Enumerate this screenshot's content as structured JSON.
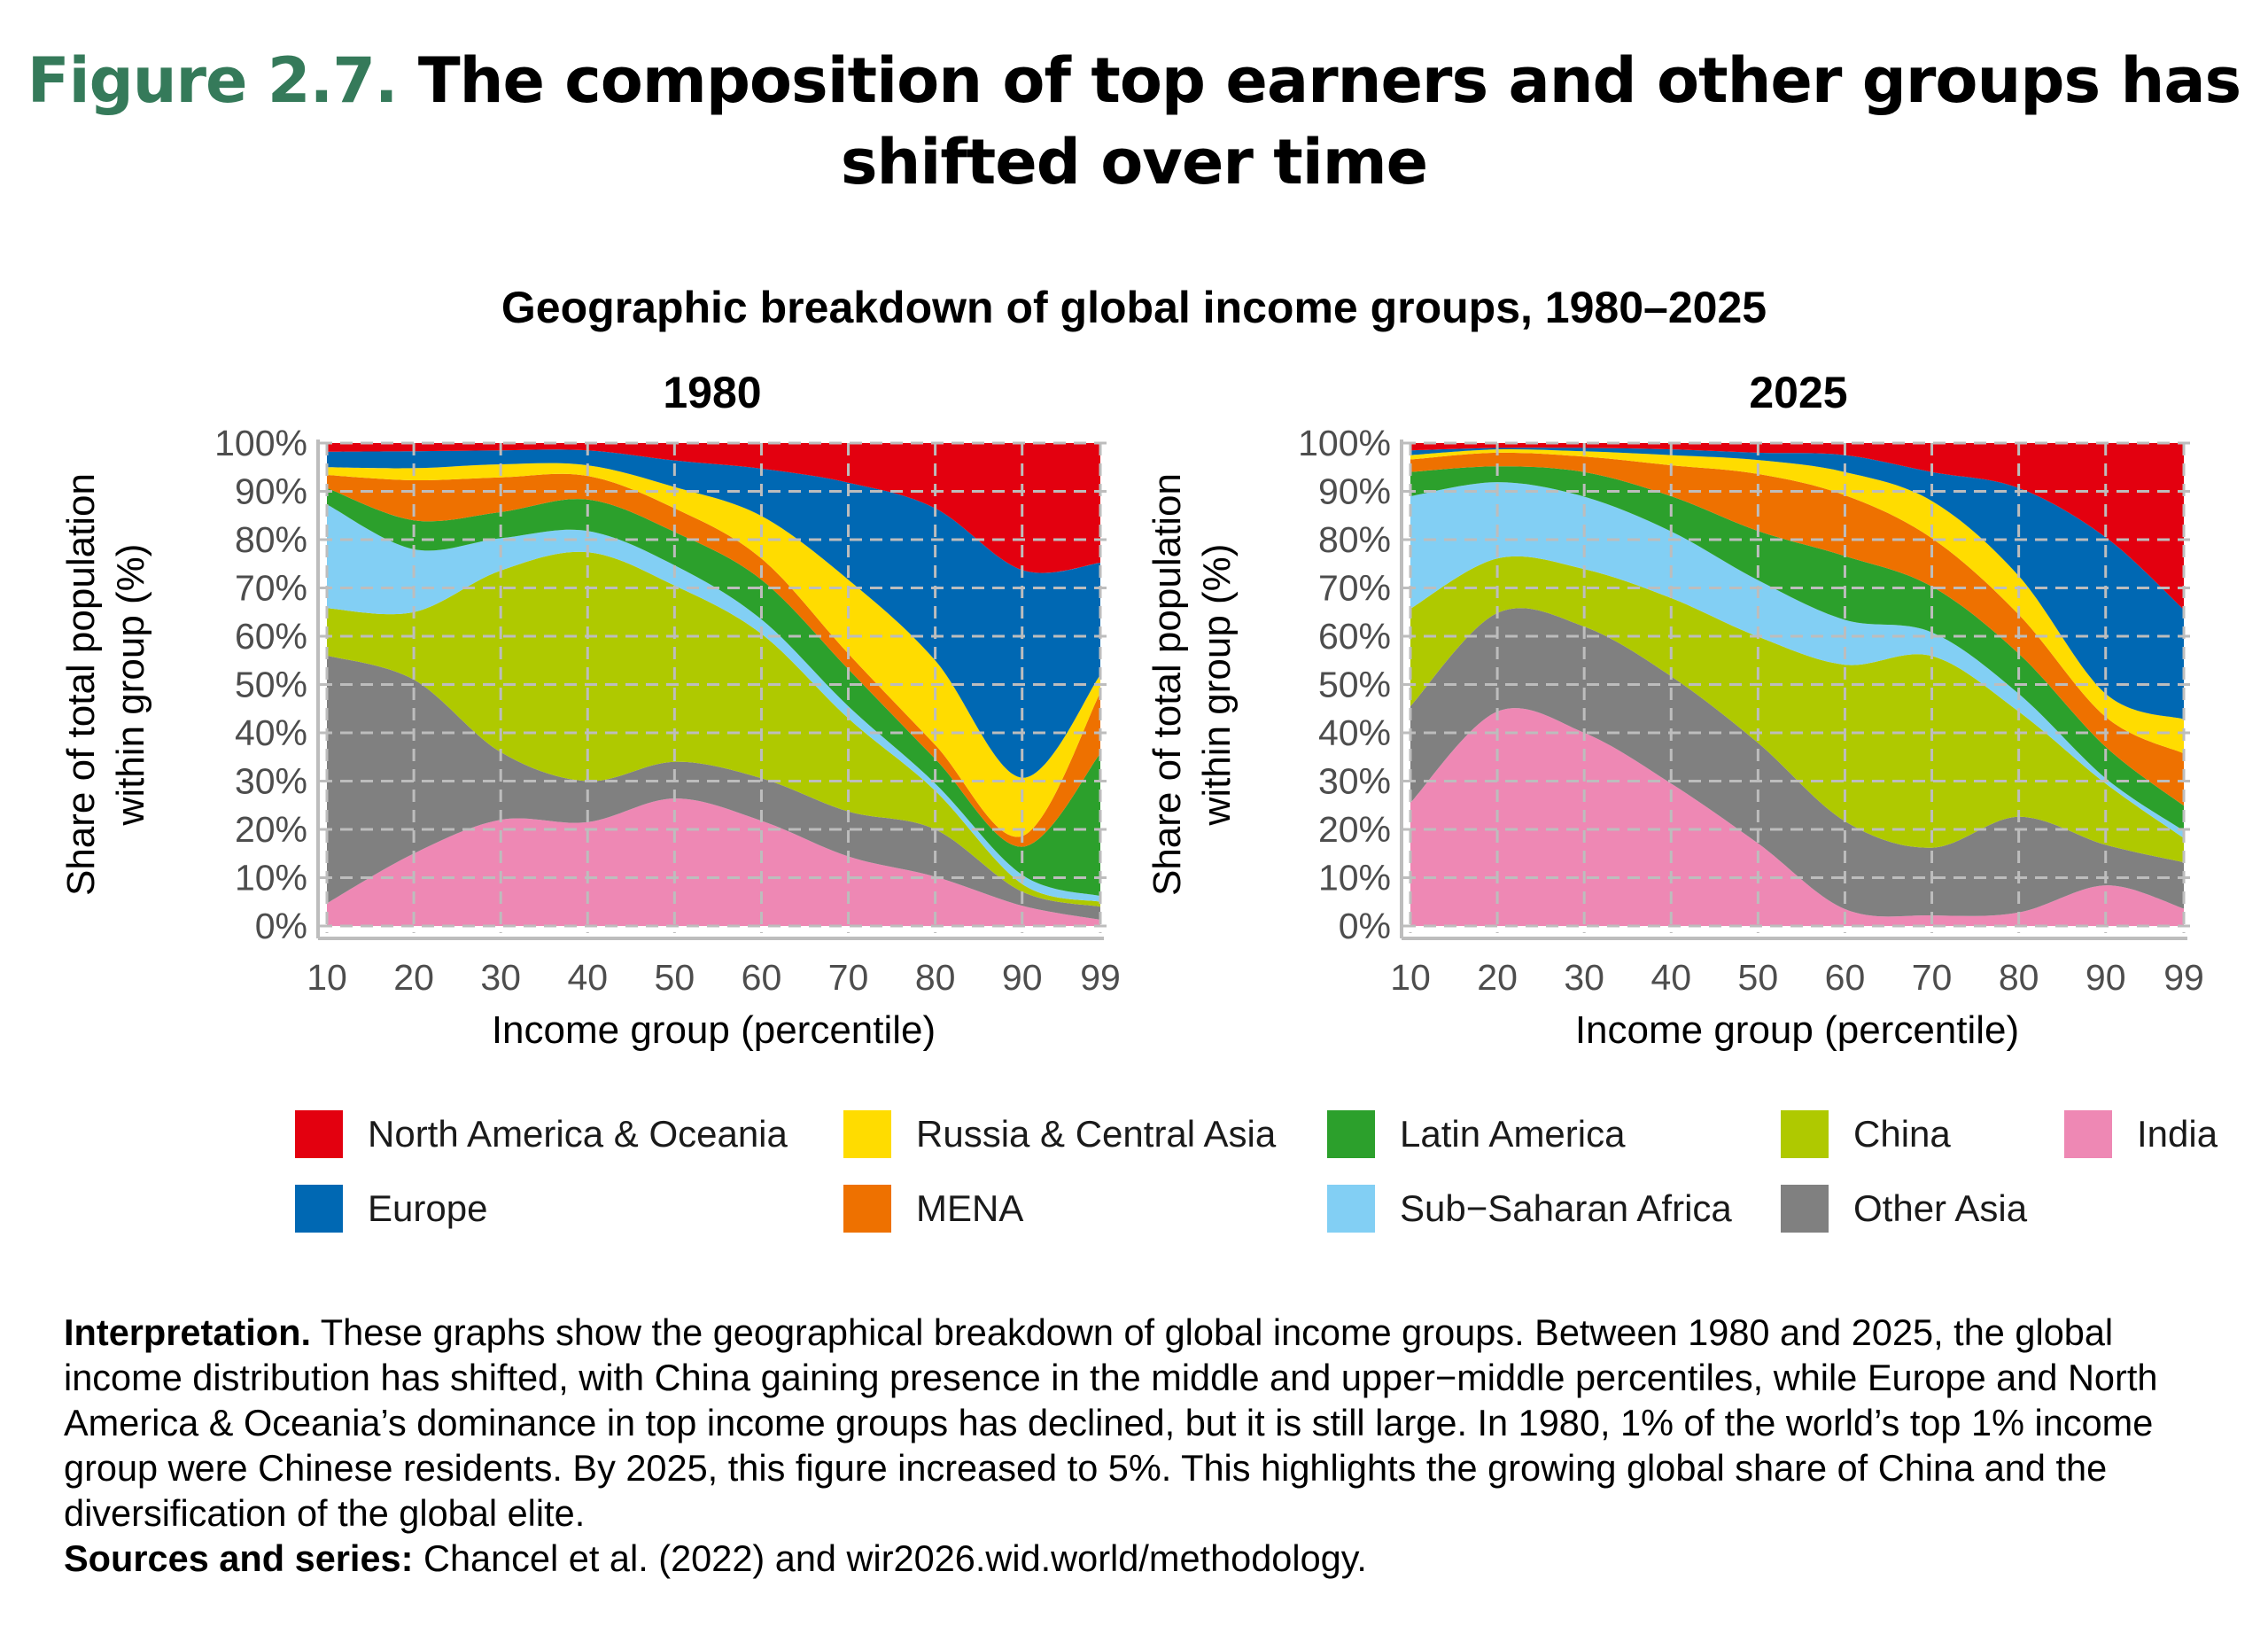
{
  "header": {
    "figure_label": "Figure 2.7.",
    "title": "The composition of top earners and other groups has shifted over time",
    "subtitle": "Geographic breakdown of global income groups, 1980–2025"
  },
  "colors": {
    "figure_label": "#357a5a",
    "North America & Oceania": "#e3000f",
    "Europe": "#0068b3",
    "Russia & Central Asia": "#ffdc00",
    "MENA": "#ee7100",
    "Latin America": "#2ca02c",
    "Sub−Saharan Africa": "#82cff4",
    "China": "#afc900",
    "Other Asia": "#808080",
    "India": "#ee88b4"
  },
  "legend": [
    {
      "label": "North America & Oceania",
      "color": "#e3000f"
    },
    {
      "label": "Russia & Central Asia",
      "color": "#ffdc00"
    },
    {
      "label": "Latin America",
      "color": "#2ca02c"
    },
    {
      "label": "China",
      "color": "#afc900"
    },
    {
      "label": "India",
      "color": "#ee88b4"
    },
    {
      "label": "Europe",
      "color": "#0068b3"
    },
    {
      "label": "MENA",
      "color": "#ee7100"
    },
    {
      "label": "Sub−Saharan Africa",
      "color": "#82cff4"
    },
    {
      "label": "Other Asia",
      "color": "#808080"
    }
  ],
  "chart_data": [
    {
      "type": "area",
      "stacked": true,
      "title": "1980",
      "xlabel": "Income group (percentile)",
      "ylabel": "Share of total population within group (%)",
      "ylabel_lines": [
        "Share of total population",
        "within group (%)"
      ],
      "ylim": [
        0,
        100
      ],
      "grid": true,
      "x": [
        10,
        20,
        30,
        40,
        50,
        60,
        70,
        80,
        90,
        99
      ],
      "x_tick_labels": [
        "10",
        "20",
        "30",
        "40",
        "50",
        "60",
        "70",
        "80",
        "90",
        "99"
      ],
      "y_tick_labels": [
        "0%",
        "10%",
        "20%",
        "30%",
        "40%",
        "50%",
        "60%",
        "70%",
        "80%",
        "90%",
        "100%"
      ],
      "series": [
        {
          "name": "India",
          "values": [
            4.7,
            15,
            22,
            21.5,
            26.4,
            21.8,
            14.4,
            10.2,
            4.2,
            1.3
          ]
        },
        {
          "name": "Other Asia",
          "values": [
            51.3,
            36,
            14,
            8.5,
            7.6,
            8.8,
            9.3,
            9.8,
            2.9,
            2.7
          ]
        },
        {
          "name": "China",
          "values": [
            9.8,
            14,
            37.6,
            47.4,
            36.5,
            29.9,
            19.3,
            8,
            1.6,
            1
          ]
        },
        {
          "name": "Sub−Saharan Africa",
          "values": [
            21.5,
            13,
            6.7,
            4.4,
            4.2,
            3,
            2.5,
            1.5,
            1.9,
            1.2
          ]
        },
        {
          "name": "Latin America",
          "values": [
            3.4,
            6,
            5.4,
            6.5,
            6.9,
            8.2,
            7.7,
            5.1,
            5.8,
            29.5
          ]
        },
        {
          "name": "MENA",
          "values": [
            2.7,
            8.3,
            7.2,
            4.9,
            4.9,
            4.4,
            3.2,
            2.9,
            2.2,
            12.6
          ]
        },
        {
          "name": "Russia & Central Asia",
          "values": [
            1.6,
            2.5,
            2.7,
            2.2,
            4.4,
            8.8,
            15.3,
            17.5,
            12.1,
            3.7
          ]
        },
        {
          "name": "Europe",
          "values": [
            3.2,
            3.5,
            2.9,
            3.1,
            5.5,
            9.8,
            20.1,
            31.5,
            43,
            23.2
          ]
        },
        {
          "name": "North America & Oceania",
          "values": [
            1.8,
            1.7,
            1.5,
            1.5,
            3.6,
            5.3,
            8.2,
            13.5,
            26.3,
            24.8
          ]
        }
      ]
    },
    {
      "type": "area",
      "stacked": true,
      "title": "2025",
      "xlabel": "Income group (percentile)",
      "ylabel": "Share of total population within group (%)",
      "ylabel_lines": [
        "Share of total population",
        "within group (%)"
      ],
      "ylim": [
        0,
        100
      ],
      "grid": true,
      "x": [
        10,
        20,
        30,
        40,
        50,
        60,
        70,
        80,
        90,
        99
      ],
      "x_tick_labels": [
        "10",
        "20",
        "30",
        "40",
        "50",
        "60",
        "70",
        "80",
        "90",
        "99"
      ],
      "y_tick_labels": [
        "0%",
        "10%",
        "20%",
        "30%",
        "40%",
        "50%",
        "60%",
        "70%",
        "80%",
        "90%",
        "100%"
      ],
      "series": [
        {
          "name": "India",
          "values": [
            25.5,
            44.4,
            40,
            29.5,
            17.1,
            3.5,
            2.2,
            2.8,
            8.4,
            3.6
          ]
        },
        {
          "name": "Other Asia",
          "values": [
            20,
            20.4,
            22,
            22.2,
            20.8,
            18.2,
            14,
            19.8,
            8.4,
            9.6
          ]
        },
        {
          "name": "China",
          "values": [
            20.2,
            11.3,
            11.9,
            16.2,
            22,
            32.4,
            39.7,
            21.8,
            12.7,
            5
          ]
        },
        {
          "name": "Sub−Saharan Africa",
          "values": [
            23.3,
            15.8,
            15,
            13.8,
            11.7,
            9.3,
            4.9,
            3.7,
            1.1,
            1.5
          ]
        },
        {
          "name": "Latin America",
          "values": [
            5,
            3.3,
            5.1,
            7.3,
            10.2,
            13.2,
            9.5,
            8.3,
            6.5,
            5.2
          ]
        },
        {
          "name": "MENA",
          "values": [
            2.6,
            2.8,
            3.2,
            6.4,
            11.8,
            12.6,
            10,
            8.1,
            6.2,
            10.8
          ]
        },
        {
          "name": "Russia & Central Asia",
          "values": [
            0.9,
            0.7,
            1.1,
            2.1,
            2.9,
            4.8,
            7.7,
            8,
            4.8,
            7.1
          ]
        },
        {
          "name": "Europe",
          "values": [
            1,
            0.3,
            0.7,
            1.2,
            1.5,
            3.5,
            6,
            18.2,
            32.4,
            22.7
          ]
        },
        {
          "name": "North America & Oceania",
          "values": [
            1.5,
            1,
            1,
            1.3,
            2,
            2.5,
            6,
            9.3,
            19.5,
            34.5
          ]
        }
      ]
    }
  ],
  "notes": {
    "interpretation_label": "Interpretation.",
    "interpretation_text": "These graphs show the geographical breakdown of global income groups. Between 1980 and 2025, the global income distribution has shifted, with China gaining presence in the middle and upper−middle percentiles, while Europe and North America & Oceania’s dominance in top income groups has declined, but it is still large. In 1980, 1% of the world’s top 1% income group were Chinese residents. By 2025, this figure increased to 5%. This highlights the growing global share of China and the diversification of the global elite.",
    "sources_label": "Sources and series:",
    "sources_text": "Chancel et al. (2022) and wir2026.wid.world/methodology."
  }
}
